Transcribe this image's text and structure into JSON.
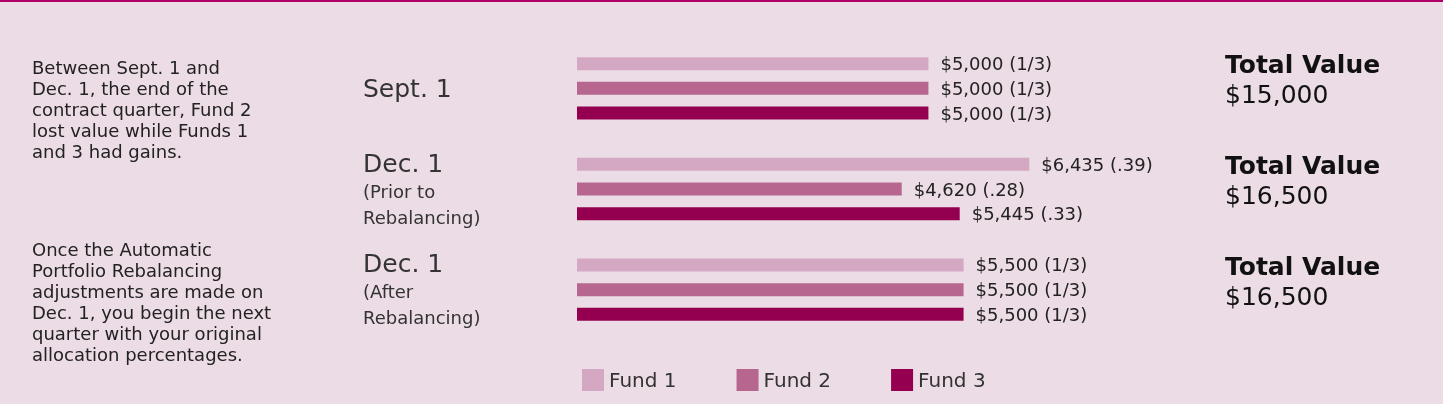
{
  "chart_data": {
    "type": "bar",
    "orientation": "horizontal",
    "legend": "bottom",
    "categories": [
      "Sept. 1",
      "Dec. 1\n(Prior to\nRebalancing)",
      "Dec. 1\n(After\nRebalancing)"
    ],
    "series": [
      {
        "name": "Fund 1",
        "color": "#d4a8c2",
        "values": [
          5000,
          6435,
          5500
        ],
        "value_labels": [
          "$5,000 (1/3)",
          "$6,435 (.39)",
          "$5,500 (1/3)"
        ]
      },
      {
        "name": "Fund 2",
        "color": "#b6668f",
        "values": [
          5000,
          4620,
          5500
        ],
        "value_labels": [
          "$5,000 (1/3)",
          "$4,620 (.28)",
          "$5,500 (1/3)"
        ]
      },
      {
        "name": "Fund 3",
        "color": "#94004f",
        "values": [
          5000,
          5445,
          5500
        ],
        "value_labels": [
          "$5,000 (1/3)",
          "$5,445 (.33)",
          "$5,500 (1/3)"
        ]
      }
    ],
    "annotations": [
      "Between Sept. 1 and\nDec. 1, the end of the\ncontract quarter, Fund 2\nlost value while Funds 1\nand 3 had gains.",
      "Once the Automatic\nPortfolio Rebalancing\nadjustments are made on\nDec. 1, you begin the next\nquarter with your original\nallocation percentages.",
      "Total Value\n$15,000",
      "Total Value\n$16,500",
      "Total Value\n$16,500"
    ]
  }
}
